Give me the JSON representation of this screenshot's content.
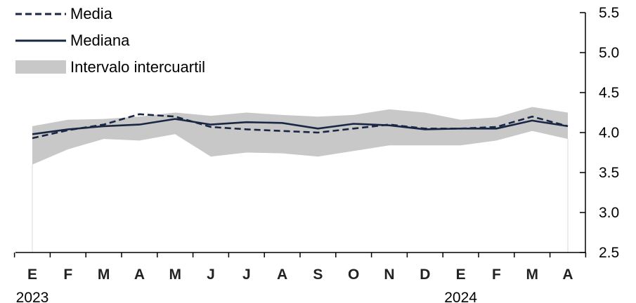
{
  "chart_data": {
    "type": "line",
    "categories": [
      "E",
      "F",
      "M",
      "A",
      "M",
      "J",
      "J",
      "A",
      "S",
      "O",
      "N",
      "D",
      "E",
      "F",
      "M",
      "A"
    ],
    "year_labels": [
      {
        "label": "2023",
        "category_index": 0
      },
      {
        "label": "2024",
        "category_index": 12
      }
    ],
    "series": [
      {
        "name": "Media",
        "style": "dashed",
        "color": "#1a2744",
        "values": [
          3.93,
          4.03,
          4.1,
          4.23,
          4.2,
          4.07,
          4.04,
          4.02,
          4.0,
          4.05,
          4.1,
          4.05,
          4.05,
          4.07,
          4.2,
          4.08
        ]
      },
      {
        "name": "Mediana",
        "style": "solid",
        "color": "#1a2744",
        "values": [
          3.98,
          4.04,
          4.08,
          4.1,
          4.17,
          4.1,
          4.13,
          4.12,
          4.05,
          4.11,
          4.09,
          4.04,
          4.05,
          4.05,
          4.15,
          4.08
        ]
      }
    ],
    "band": {
      "name": "Intervalo intercuartil",
      "color": "#c8c8c8",
      "upper": [
        4.08,
        4.16,
        4.17,
        4.2,
        4.25,
        4.21,
        4.25,
        4.22,
        4.2,
        4.22,
        4.29,
        4.25,
        4.16,
        4.19,
        4.32,
        4.25
      ],
      "lower": [
        3.6,
        3.79,
        3.92,
        3.9,
        3.98,
        3.7,
        3.75,
        3.74,
        3.7,
        3.77,
        3.84,
        3.84,
        3.84,
        3.9,
        4.02,
        3.92
      ]
    },
    "yaxis": {
      "side": "right",
      "ylim": [
        2.5,
        5.5
      ],
      "ticks": [
        2.5,
        3.0,
        3.5,
        4.0,
        4.5,
        5.0,
        5.5
      ],
      "tick_labels": [
        "2.5",
        "3.0",
        "3.5",
        "4.0",
        "4.5",
        "5.0",
        "5.5"
      ]
    },
    "legend": {
      "position": "top-left"
    },
    "grid": false
  }
}
